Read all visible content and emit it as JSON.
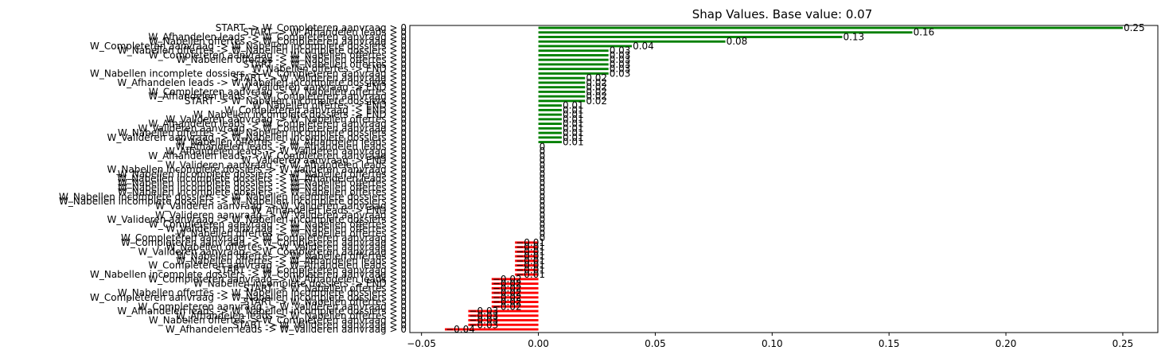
{
  "chart_data": {
    "type": "bar",
    "orientation": "horizontal",
    "title": "Shap Values. Base value: 0.07",
    "xlabel": "",
    "ylabel": "",
    "xlim": [
      -0.055,
      0.265
    ],
    "xticks": [
      -0.05,
      0.0,
      0.05,
      0.1,
      0.15,
      0.2,
      0.25
    ],
    "xtick_labels": [
      "−0.05",
      "0.00",
      "0.05",
      "0.10",
      "0.15",
      "0.20",
      "0.25"
    ],
    "grid": false,
    "legend": "none",
    "colors": {
      "positive": "#008000",
      "negative": "#ff0000"
    },
    "bars": [
      {
        "label": "START -> W_Completeren aanvraag > 0",
        "value": 0.25,
        "value_label": "0.25"
      },
      {
        "label": "START -> W_Afhandelen leads > 0",
        "value": 0.16,
        "value_label": "0.16"
      },
      {
        "label": "W_Afhandelen leads -> W_Completeren aanvraag > 0",
        "value": 0.13,
        "value_label": "0.13"
      },
      {
        "label": "W_Nabellen offertes -> W_Completeren aanvraag > 0",
        "value": 0.08,
        "value_label": "0.08"
      },
      {
        "label": "W_Completeren aanvraag -> W_Nabellen incomplete dossiers > 0",
        "value": 0.04,
        "value_label": "0.04"
      },
      {
        "label": "W_Nabellen offertes -> W_Nabellen incomplete dossiers > 0",
        "value": 0.03,
        "value_label": "0.03"
      },
      {
        "label": "W_Completeren aanvraag -> W_Nabellen offertes > 0",
        "value": 0.03,
        "value_label": "0.03"
      },
      {
        "label": "W_Nabellen offertes -> W_Nabellen offertes > 0",
        "value": 0.03,
        "value_label": "0.03"
      },
      {
        "label": "START -> W_Nabellen offertes > 0",
        "value": 0.03,
        "value_label": "0.03"
      },
      {
        "label": "W_Nabellen offertes -> END > 0",
        "value": 0.03,
        "value_label": "0.03"
      },
      {
        "label": "W_Nabellen incomplete dossiers -> W_Completeren aanvraag > 0",
        "value": 0.03,
        "value_label": "0.03"
      },
      {
        "label": "START -> W_Valideren aanvraag > 0",
        "value": 0.02,
        "value_label": "0.02"
      },
      {
        "label": "W_Afhandelen leads -> W_Nabellen incomplete dossiers > 0",
        "value": 0.02,
        "value_label": "0.02"
      },
      {
        "label": "W_Valideren aanvraag -> END > 0",
        "value": 0.02,
        "value_label": "0.02"
      },
      {
        "label": "W_Completeren aanvraag -> W_Nabellen offertes > 0",
        "value": 0.02,
        "value_label": "0.02"
      },
      {
        "label": "W_Afhandelen leads -> W_Completeren aanvraag > 0",
        "value": 0.02,
        "value_label": "0.02"
      },
      {
        "label": "START -> W_Nabellen incomplete dossiers > 0",
        "value": 0.02,
        "value_label": "0.02"
      },
      {
        "label": "W_Nabellen offertes -> END > 0",
        "value": 0.01,
        "value_label": "0.01"
      },
      {
        "label": "W_Completeren aanvraag -> END > 0",
        "value": 0.01,
        "value_label": "0.01"
      },
      {
        "label": "W_Nabellen incomplete dossiers -> END > 0",
        "value": 0.01,
        "value_label": "0.01"
      },
      {
        "label": "W_Valideren aanvraag -> W_Nabellen offertes > 0",
        "value": 0.01,
        "value_label": "0.01"
      },
      {
        "label": "W_Afhandelen leads -> W_Completeren aanvraag > 0",
        "value": 0.01,
        "value_label": "0.01"
      },
      {
        "label": "W_Valideren aanvraag -> W_Completeren aanvraag > 0",
        "value": 0.01,
        "value_label": "0.01"
      },
      {
        "label": "W_Nabellen offertes -> W_Nabellen incomplete dossiers > 0",
        "value": 0.01,
        "value_label": "0.01"
      },
      {
        "label": "W_Valideren aanvraag -> W_Nabellen incomplete dossiers > 0",
        "value": 0.01,
        "value_label": "0.01"
      },
      {
        "label": "W_Nabellen offertes -> W_Afhandelen leads > 0",
        "value": 0.01,
        "value_label": "0.01"
      },
      {
        "label": "W_Afhandelen leads -> W_Afhandelen leads > 0",
        "value": 0.0,
        "value_label": "0"
      },
      {
        "label": "W_Afhandelen leads -> W_Valideren aanvraag > 0",
        "value": 0.0,
        "value_label": "0"
      },
      {
        "label": "W_Afhandelen leads -> W_Completeren aanvraag > 0",
        "value": 0.0,
        "value_label": "0"
      },
      {
        "label": "W_Valideren aanvraag -> END > 0",
        "value": 0.0,
        "value_label": "0"
      },
      {
        "label": "W_Valideren aanvraag -> W_Afhandelen leads > 0",
        "value": 0.0,
        "value_label": "0"
      },
      {
        "label": "W_Nabellen incomplete dossiers -> W_Valideren aanvraag > 0",
        "value": 0.0,
        "value_label": "0"
      },
      {
        "label": "W_Nabellen incomplete dossiers -> W_Nabellen offertes > 0",
        "value": 0.0,
        "value_label": "0"
      },
      {
        "label": "W_Nabellen incomplete dossiers -> W_Afhandelen leads > 0",
        "value": 0.0,
        "value_label": "0"
      },
      {
        "label": "W_Nabellen incomplete dossiers -> W_Nabellen offertes > 0",
        "value": 0.0,
        "value_label": "0"
      },
      {
        "label": "W_Nabellen incomplete dossiers -> W_Nabellen offertes > 0",
        "value": 0.0,
        "value_label": "0"
      },
      {
        "label": "W_Nabellen incomplete dossiers -> W_Nabellen offertes > 0",
        "value": 0.0,
        "value_label": "0"
      },
      {
        "label": "W_Nabellen incomplete dossiers -> W_Nabellen incomplete dossiers > 0",
        "value": 0.0,
        "value_label": "0"
      },
      {
        "label": "W_Nabellen incomplete dossiers -> W_Nabellen incomplete dossiers > 0",
        "value": 0.0,
        "value_label": "0"
      },
      {
        "label": "W_Valideren aanvraag -> W_Valideren aanvraag > 0",
        "value": 0.0,
        "value_label": "0"
      },
      {
        "label": "W_Afhandelen leads -> END > 0",
        "value": 0.0,
        "value_label": "0"
      },
      {
        "label": "W_Valideren aanvraag -> W_Valideren aanvraag > 0",
        "value": 0.0,
        "value_label": "0"
      },
      {
        "label": "W_Valideren aanvraag -> W_Nabellen incomplete dossiers > 0",
        "value": 0.0,
        "value_label": "0"
      },
      {
        "label": "W_Completeren aanvraag -> W_Nabellen offertes > 0",
        "value": 0.0,
        "value_label": "0"
      },
      {
        "label": "W_Valideren aanvraag -> W_Nabellen offertes > 0",
        "value": 0.0,
        "value_label": "0"
      },
      {
        "label": "W_Nabellen offertes -> W_Nabellen offertes > 0",
        "value": 0.0,
        "value_label": "0"
      },
      {
        "label": "W_Completeren aanvraag -> W_Completeren aanvraag > 0",
        "value": 0.0,
        "value_label": "0"
      },
      {
        "label": "W_Completeren aanvraag -> W_Completeren aanvraag > 0",
        "value": -0.01,
        "value_label": "−0.01"
      },
      {
        "label": "W_Nabellen offertes -> W_Valideren aanvraag > 0",
        "value": -0.01,
        "value_label": "−0.01"
      },
      {
        "label": "W_Valideren aanvraag -> W_Completeren aanvraag > 0",
        "value": -0.01,
        "value_label": "−0.01"
      },
      {
        "label": "W_Nabellen offertes -> W_Nabellen offertes > 0",
        "value": -0.01,
        "value_label": "−0.01"
      },
      {
        "label": "W_Nabellen offertes -> W_Afhandelen leads > 0",
        "value": -0.01,
        "value_label": "−0.01"
      },
      {
        "label": "W_Completeren aanvraag -> W_Afhandelen leads > 0",
        "value": -0.01,
        "value_label": "−0.01"
      },
      {
        "label": "START -> W_Completeren aanvraag > 0",
        "value": -0.01,
        "value_label": "−0.01"
      },
      {
        "label": "W_Nabellen incomplete dossiers -> W_Completeren aanvraag > 0",
        "value": -0.01,
        "value_label": "−0.01"
      },
      {
        "label": "W_Completeren aanvraag -> W_Afhandelen leads > 0",
        "value": -0.02,
        "value_label": "−0.02"
      },
      {
        "label": "W_Nabellen incomplete dossiers -> END > 0",
        "value": -0.02,
        "value_label": "−0.02"
      },
      {
        "label": "START -> W_Nabellen offertes > 0",
        "value": -0.02,
        "value_label": "−0.02"
      },
      {
        "label": "W_Nabellen offertes -> W_Nabellen incomplete dossiers > 0",
        "value": -0.02,
        "value_label": "−0.02"
      },
      {
        "label": "W_Completeren aanvraag -> W_Nabellen incomplete dossiers > 0",
        "value": -0.02,
        "value_label": "−0.02"
      },
      {
        "label": "START -> W_Nabellen offertes > 0",
        "value": -0.02,
        "value_label": "−0.02"
      },
      {
        "label": "W_Completeren aanvraag -> W_Valideren aanvraag > 0",
        "value": -0.02,
        "value_label": "−0.02"
      },
      {
        "label": "W_Afhandelen leads -> W_Nabellen incomplete dossiers > 0",
        "value": -0.03,
        "value_label": "−0.03"
      },
      {
        "label": "W_Afhandelen leads -> W_Nabellen offertes > 0",
        "value": -0.03,
        "value_label": "−0.03"
      },
      {
        "label": "W_Nabellen offertes -> W_Completeren aanvraag > 0",
        "value": -0.03,
        "value_label": "−0.03"
      },
      {
        "label": "START -> W_Valideren aanvraag > 0",
        "value": -0.03,
        "value_label": "−0.03"
      },
      {
        "label": "W_Afhandelen leads -> W_Valideren aanvraag > 0",
        "value": -0.04,
        "value_label": "−0.04"
      }
    ]
  }
}
